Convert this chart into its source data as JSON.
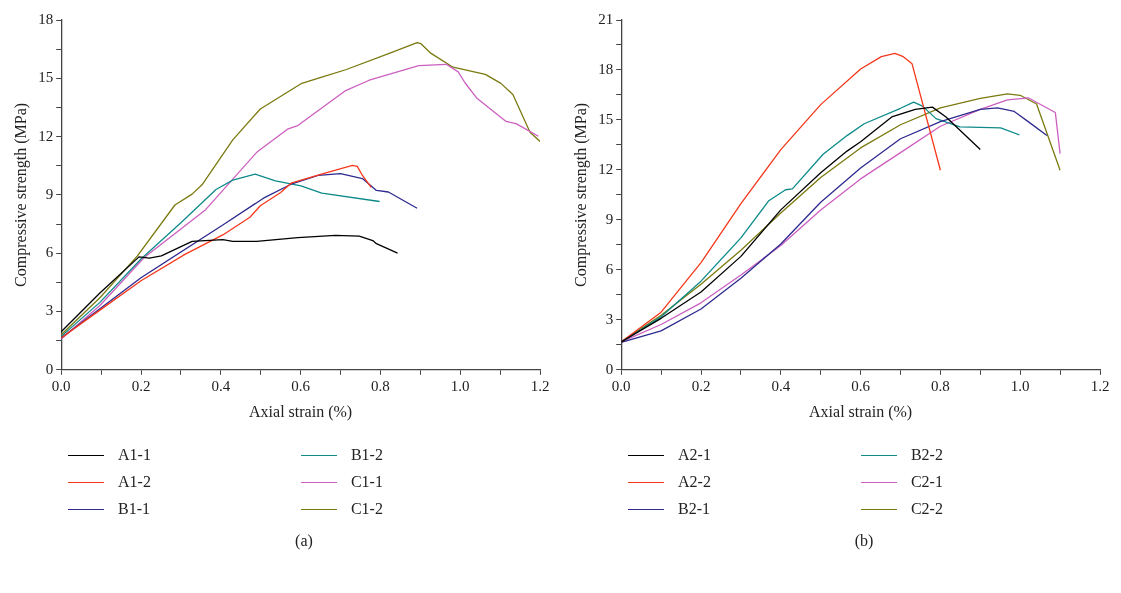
{
  "chart_data": [
    {
      "type": "line",
      "xlabel": "Axial strain (%)",
      "ylabel": "Compressive strength (MPa)",
      "xlim": [
        0,
        1.2
      ],
      "ylim": [
        0,
        18
      ],
      "xticks": [
        {
          "value": 0,
          "label": "0.0"
        },
        {
          "value": 0.1,
          "label": null
        },
        {
          "value": 0.2,
          "label": "0.2"
        },
        {
          "value": 0.3,
          "label": null
        },
        {
          "value": 0.4,
          "label": "0.4"
        },
        {
          "value": 0.5,
          "label": null
        },
        {
          "value": 0.6,
          "label": "0.6"
        },
        {
          "value": 0.7,
          "label": null
        },
        {
          "value": 0.8,
          "label": "0.8"
        },
        {
          "value": 0.9,
          "label": null
        },
        {
          "value": 1.0,
          "label": "1.0"
        },
        {
          "value": 1.1,
          "label": null
        },
        {
          "value": 1.2,
          "label": "1.2"
        }
      ],
      "yticks": [
        0,
        {
          "value": 1.5,
          "label": null
        },
        3,
        {
          "value": 4.5,
          "label": null
        },
        6,
        {
          "value": 7.5,
          "label": null
        },
        9,
        {
          "value": 10.5,
          "label": null
        },
        12,
        {
          "value": 13.5,
          "label": null
        },
        15,
        {
          "value": 16.5,
          "label": null
        },
        18
      ],
      "grid": false,
      "legend": "bottom",
      "marker": "none",
      "annotations": [
        "(a)"
      ],
      "series": [
        {
          "name": "A1-1",
          "color": "#000000",
          "x": [
            0,
            0.097,
            0.195,
            0.221,
            0.251,
            0.328,
            0.405,
            0.43,
            0.49,
            0.593,
            0.687,
            0.747,
            0.781,
            0.79,
            0.843
          ],
          "values": [
            1.96,
            3.95,
            5.81,
            5.75,
            5.86,
            6.61,
            6.7,
            6.61,
            6.61,
            6.8,
            6.92,
            6.88,
            6.65,
            6.49,
            6.0
          ]
        },
        {
          "name": "A1-2",
          "color": "#f5381b",
          "x": [
            0,
            0.097,
            0.2,
            0.31,
            0.405,
            0.473,
            0.499,
            0.55,
            0.576,
            0.661,
            0.73,
            0.742,
            0.755,
            0.777
          ],
          "values": [
            1.64,
            3.07,
            4.58,
            5.94,
            6.94,
            7.85,
            8.44,
            9.12,
            9.6,
            10.12,
            10.52,
            10.47,
            10.0,
            9.39
          ]
        },
        {
          "name": "B1-1",
          "color": "#2e2a8f",
          "x": [
            0,
            0.2,
            0.405,
            0.507,
            0.576,
            0.644,
            0.7,
            0.755,
            0.79,
            0.82,
            0.892
          ],
          "values": [
            1.64,
            4.74,
            7.45,
            8.83,
            9.55,
            10.0,
            10.1,
            9.84,
            9.23,
            9.15,
            8.31
          ]
        },
        {
          "name": "B1-2",
          "color": "#0e8a8a",
          "x": [
            0,
            0.097,
            0.2,
            0.302,
            0.388,
            0.43,
            0.486,
            0.537,
            0.601,
            0.653,
            0.798
          ],
          "values": [
            1.72,
            3.47,
            5.7,
            7.61,
            9.28,
            9.76,
            10.07,
            9.72,
            9.47,
            9.09,
            8.66
          ]
        },
        {
          "name": "C1-1",
          "color": "#cc5fc0",
          "x": [
            0,
            0.097,
            0.208,
            0.362,
            0.49,
            0.567,
            0.593,
            0.713,
            0.772,
            0.896,
            0.965,
            0.995,
            1.012,
            1.042,
            1.085,
            1.115,
            1.14,
            1.196
          ],
          "values": [
            1.59,
            3.31,
            5.78,
            8.24,
            11.19,
            12.38,
            12.57,
            14.37,
            14.9,
            15.65,
            15.72,
            15.33,
            14.77,
            13.97,
            13.26,
            12.78,
            12.67,
            12.02
          ]
        },
        {
          "name": "C1-2",
          "color": "#7a7a10",
          "x": [
            0,
            0.097,
            0.191,
            0.285,
            0.328,
            0.353,
            0.43,
            0.499,
            0.601,
            0.653,
            0.713,
            0.832,
            0.892,
            0.901,
            0.927,
            0.982,
            1.063,
            1.102,
            1.132,
            1.175,
            1.2
          ],
          "values": [
            1.8,
            3.71,
            5.86,
            8.48,
            9.04,
            9.52,
            11.83,
            13.42,
            14.72,
            15.06,
            15.44,
            16.36,
            16.84,
            16.79,
            16.28,
            15.57,
            15.2,
            14.74,
            14.17,
            12.22,
            11.75
          ]
        }
      ]
    },
    {
      "type": "line",
      "xlabel": "Axial strain (%)",
      "ylabel": "Compressive strength (MPa)",
      "xlim": [
        0,
        1.2
      ],
      "ylim": [
        0,
        21
      ],
      "xticks": [
        {
          "value": 0,
          "label": "0.0"
        },
        {
          "value": 0.1,
          "label": null
        },
        {
          "value": 0.2,
          "label": "0.2"
        },
        {
          "value": 0.3,
          "label": null
        },
        {
          "value": 0.4,
          "label": "0.4"
        },
        {
          "value": 0.5,
          "label": null
        },
        {
          "value": 0.6,
          "label": "0.6"
        },
        {
          "value": 0.7,
          "label": null
        },
        {
          "value": 0.8,
          "label": "0.8"
        },
        {
          "value": 0.9,
          "label": null
        },
        {
          "value": 1.0,
          "label": "1.0"
        },
        {
          "value": 1.1,
          "label": null
        },
        {
          "value": 1.2,
          "label": "1.2"
        }
      ],
      "yticks": [
        0,
        {
          "value": 1.5,
          "label": null
        },
        3,
        {
          "value": 4.5,
          "label": null
        },
        6,
        {
          "value": 7.5,
          "label": null
        },
        9,
        {
          "value": 10.5,
          "label": null
        },
        12,
        {
          "value": 13.5,
          "label": null
        },
        15,
        {
          "value": 16.5,
          "label": null
        },
        18,
        {
          "value": 19.5,
          "label": null
        },
        21
      ],
      "grid": false,
      "legend": "bottom",
      "marker": "none",
      "annotations": [
        "(b)"
      ],
      "series": [
        {
          "name": "A2-1",
          "color": "#000000",
          "x": [
            0,
            0.1,
            0.2,
            0.3,
            0.4,
            0.5,
            0.566,
            0.6,
            0.678,
            0.737,
            0.78,
            0.814,
            0.9
          ],
          "values": [
            1.67,
            3.09,
            4.67,
            6.81,
            9.6,
            11.83,
            13.13,
            13.69,
            15.18,
            15.64,
            15.77,
            15.18,
            13.22
          ]
        },
        {
          "name": "A2-2",
          "color": "#f5381b",
          "x": [
            0,
            0.1,
            0.2,
            0.3,
            0.4,
            0.5,
            0.6,
            0.652,
            0.686,
            0.707,
            0.729,
            0.8
          ],
          "values": [
            1.67,
            3.46,
            6.43,
            9.97,
            13.22,
            15.92,
            18.06,
            18.8,
            18.99,
            18.8,
            18.37,
            11.98
          ]
        },
        {
          "name": "B2-1",
          "color": "#2e2a8f",
          "x": [
            0,
            0.1,
            0.2,
            0.3,
            0.4,
            0.5,
            0.6,
            0.7,
            0.8,
            0.9,
            0.943,
            0.985,
            1.02,
            1.067
          ],
          "values": [
            1.64,
            2.34,
            3.65,
            5.5,
            7.55,
            10.06,
            12.11,
            13.87,
            14.9,
            15.64,
            15.73,
            15.51,
            14.9,
            14.06
          ]
        },
        {
          "name": "B2-2",
          "color": "#0e8a8a",
          "x": [
            0,
            0.1,
            0.2,
            0.3,
            0.37,
            0.412,
            0.429,
            0.506,
            0.566,
            0.609,
            0.7,
            0.733,
            0.755,
            0.789,
            0.849,
            0.951,
            0.998
          ],
          "values": [
            1.67,
            3.18,
            5.32,
            7.92,
            10.15,
            10.81,
            10.86,
            12.94,
            14.06,
            14.77,
            15.7,
            16.07,
            15.83,
            15.08,
            14.58,
            14.52,
            14.1
          ]
        },
        {
          "name": "C2-1",
          "color": "#cc5fc0",
          "x": [
            0,
            0.1,
            0.2,
            0.3,
            0.4,
            0.5,
            0.6,
            0.7,
            0.8,
            0.9,
            0.968,
            1.02,
            1.088,
            1.1
          ],
          "values": [
            1.67,
            2.72,
            4.02,
            5.69,
            7.46,
            9.6,
            11.46,
            13.04,
            14.62,
            15.64,
            16.2,
            16.33,
            15.45,
            12.98
          ]
        },
        {
          "name": "C2-2",
          "color": "#7a7a10",
          "x": [
            0,
            0.1,
            0.2,
            0.3,
            0.4,
            0.5,
            0.6,
            0.7,
            0.8,
            0.9,
            0.968,
            1.0,
            1.041,
            1.1
          ],
          "values": [
            1.67,
            3.27,
            5.13,
            7.18,
            9.41,
            11.55,
            13.32,
            14.71,
            15.73,
            16.29,
            16.57,
            16.48,
            15.96,
            11.98
          ]
        }
      ]
    }
  ]
}
